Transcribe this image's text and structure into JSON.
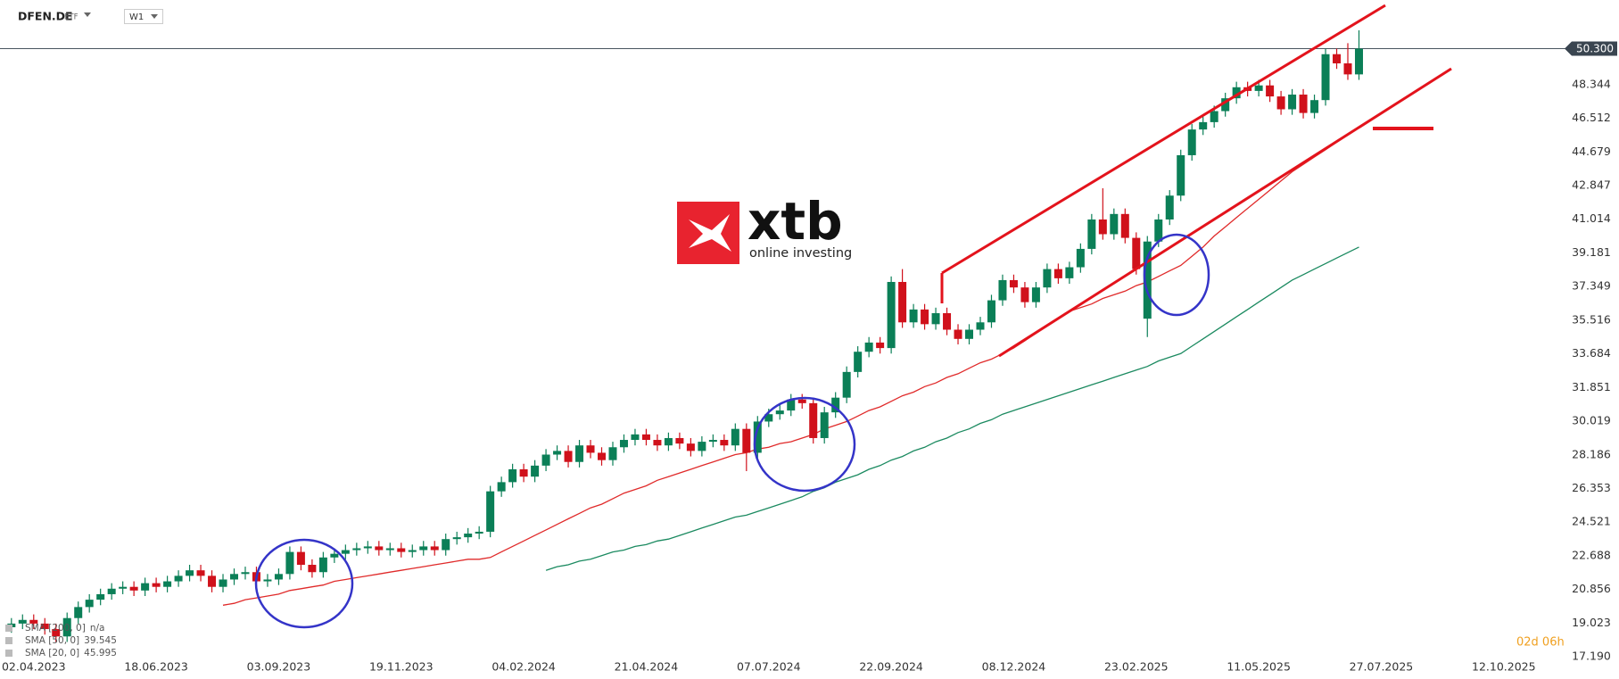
{
  "chart_data": {
    "type": "candlestick",
    "symbol": "DFEN.DE",
    "asset_class": "ETF",
    "interval": "W1",
    "countdown": "02d 06h",
    "watermark": {
      "brand": "xtb",
      "tagline": "online investing"
    },
    "up_color": "#0b7f57",
    "down_color": "#d0111b",
    "price_line": {
      "value": 50.3,
      "label": "50.300"
    },
    "ylim": [
      17.1,
      52.95
    ],
    "yticks": [
      {
        "value": 17.19,
        "label": "17.190"
      },
      {
        "value": 19.023,
        "label": "19.023"
      },
      {
        "value": 20.856,
        "label": "20.856"
      },
      {
        "value": 22.688,
        "label": "22.688"
      },
      {
        "value": 24.521,
        "label": "24.521"
      },
      {
        "value": 26.353,
        "label": "26.353"
      },
      {
        "value": 28.186,
        "label": "28.186"
      },
      {
        "value": 30.019,
        "label": "30.019"
      },
      {
        "value": 31.851,
        "label": "31.851"
      },
      {
        "value": 33.684,
        "label": "33.684"
      },
      {
        "value": 35.516,
        "label": "35.516"
      },
      {
        "value": 37.349,
        "label": "37.349"
      },
      {
        "value": 39.181,
        "label": "39.181"
      },
      {
        "value": 41.014,
        "label": "41.014"
      },
      {
        "value": 42.847,
        "label": "42.847"
      },
      {
        "value": 44.679,
        "label": "44.679"
      },
      {
        "value": 46.512,
        "label": "46.512"
      },
      {
        "value": 48.344,
        "label": "48.344"
      }
    ],
    "xticks": [
      "02.04.2023",
      "18.06.2023",
      "03.09.2023",
      "19.11.2023",
      "04.02.2024",
      "21.04.2024",
      "07.07.2024",
      "22.09.2024",
      "08.12.2024",
      "23.02.2025",
      "11.05.2025",
      "27.07.2025",
      "12.10.2025"
    ],
    "open": [
      18.8,
      19.0,
      19.2,
      19.0,
      18.7,
      18.3,
      19.3,
      19.9,
      20.3,
      20.6,
      20.9,
      21.0,
      20.8,
      21.2,
      21.0,
      21.3,
      21.6,
      21.9,
      21.6,
      21.0,
      21.4,
      21.7,
      21.8,
      21.3,
      21.4,
      21.7,
      22.9,
      22.2,
      21.8,
      22.6,
      22.8,
      23.0,
      23.1,
      23.2,
      23.0,
      23.1,
      22.9,
      23.0,
      23.2,
      23.0,
      23.6,
      23.7,
      23.9,
      24.0,
      26.2,
      26.7,
      27.4,
      27.0,
      27.6,
      28.2,
      28.4,
      27.8,
      28.7,
      28.3,
      27.9,
      28.6,
      29.0,
      29.3,
      29.0,
      28.7,
      29.1,
      28.8,
      28.4,
      28.9,
      29.0,
      28.7,
      29.6,
      28.3,
      30.0,
      30.4,
      30.6,
      31.2,
      31.0,
      29.1,
      30.5,
      31.3,
      32.7,
      33.8,
      34.3,
      34.0,
      37.6,
      35.4,
      36.1,
      35.3,
      35.9,
      35.0,
      34.5,
      35.0,
      35.4,
      36.6,
      37.7,
      37.3,
      36.5,
      37.3,
      38.3,
      37.8,
      38.4,
      39.4,
      41.0,
      40.2,
      41.3,
      40.0,
      35.6,
      39.8,
      41.0,
      42.3,
      44.5,
      45.9,
      46.3,
      46.9,
      47.6,
      48.2,
      48.0,
      48.3,
      47.7,
      47.0,
      47.8,
      46.8,
      47.5,
      50.0,
      49.5,
      48.9
    ],
    "high": [
      19.3,
      19.5,
      19.5,
      19.3,
      19.0,
      19.6,
      20.2,
      20.6,
      20.9,
      21.2,
      21.3,
      21.3,
      21.5,
      21.5,
      21.6,
      21.9,
      22.2,
      22.2,
      21.9,
      21.7,
      22.0,
      22.1,
      22.1,
      21.7,
      22.0,
      23.2,
      23.2,
      22.5,
      22.9,
      23.1,
      23.3,
      23.4,
      23.5,
      23.5,
      23.4,
      23.4,
      23.3,
      23.5,
      23.5,
      23.9,
      24.0,
      24.2,
      24.3,
      26.5,
      27.0,
      27.7,
      27.7,
      27.9,
      28.5,
      28.7,
      28.7,
      29.0,
      29.0,
      28.6,
      28.9,
      29.3,
      29.6,
      29.6,
      29.3,
      29.4,
      29.4,
      29.1,
      29.2,
      29.3,
      29.3,
      29.9,
      29.9,
      30.3,
      30.7,
      30.9,
      31.5,
      31.5,
      31.3,
      30.8,
      31.6,
      33.0,
      34.1,
      34.6,
      34.6,
      37.9,
      38.3,
      36.4,
      36.4,
      36.2,
      36.2,
      35.3,
      35.3,
      35.7,
      36.9,
      38.0,
      38.0,
      37.6,
      37.6,
      38.6,
      38.6,
      38.7,
      39.7,
      41.3,
      42.7,
      41.6,
      41.6,
      40.3,
      40.1,
      41.3,
      42.6,
      44.8,
      46.2,
      46.6,
      47.2,
      47.9,
      48.5,
      48.5,
      48.6,
      48.6,
      48.0,
      48.1,
      48.1,
      47.8,
      50.3,
      50.3,
      50.6,
      51.3
    ],
    "low": [
      18.5,
      18.7,
      18.7,
      18.4,
      18.0,
      18.0,
      19.0,
      19.6,
      20.0,
      20.3,
      20.6,
      20.5,
      20.5,
      20.7,
      20.7,
      21.0,
      21.3,
      21.3,
      20.7,
      20.7,
      21.1,
      21.4,
      21.0,
      21.0,
      21.1,
      21.4,
      21.9,
      21.5,
      21.5,
      22.3,
      22.5,
      22.7,
      22.8,
      22.7,
      22.7,
      22.6,
      22.6,
      22.7,
      22.7,
      22.7,
      23.3,
      23.4,
      23.6,
      23.7,
      25.9,
      26.4,
      26.7,
      26.7,
      27.3,
      27.9,
      27.5,
      27.5,
      28.0,
      27.6,
      27.6,
      28.3,
      28.7,
      28.7,
      28.4,
      28.4,
      28.5,
      28.1,
      28.1,
      28.6,
      28.4,
      28.4,
      27.3,
      28.0,
      29.7,
      30.1,
      30.3,
      30.7,
      28.8,
      28.8,
      30.2,
      31.0,
      32.4,
      33.5,
      33.7,
      33.7,
      35.1,
      35.1,
      35.0,
      35.0,
      34.7,
      34.2,
      34.2,
      34.7,
      35.1,
      36.3,
      37.0,
      36.2,
      36.2,
      37.0,
      37.5,
      37.5,
      38.1,
      39.1,
      39.9,
      39.9,
      39.7,
      38.0,
      34.6,
      39.5,
      40.7,
      42.0,
      44.2,
      45.6,
      46.0,
      46.6,
      47.3,
      47.7,
      47.7,
      47.4,
      46.7,
      46.7,
      46.5,
      46.5,
      47.2,
      49.2,
      48.6,
      48.6
    ],
    "close": [
      19.0,
      19.2,
      19.0,
      18.7,
      18.3,
      19.3,
      19.9,
      20.3,
      20.6,
      20.9,
      21.0,
      20.8,
      21.2,
      21.0,
      21.3,
      21.6,
      21.9,
      21.6,
      21.0,
      21.4,
      21.7,
      21.8,
      21.3,
      21.4,
      21.7,
      22.9,
      22.2,
      21.8,
      22.6,
      22.8,
      23.0,
      23.1,
      23.2,
      23.0,
      23.1,
      22.9,
      23.0,
      23.2,
      23.0,
      23.6,
      23.7,
      23.9,
      24.0,
      26.2,
      26.7,
      27.4,
      27.0,
      27.6,
      28.2,
      28.4,
      27.8,
      28.7,
      28.3,
      27.9,
      28.6,
      29.0,
      29.3,
      29.0,
      28.7,
      29.1,
      28.8,
      28.4,
      28.9,
      29.0,
      28.7,
      29.6,
      28.3,
      30.0,
      30.4,
      30.6,
      31.2,
      31.0,
      29.1,
      30.5,
      31.3,
      32.7,
      33.8,
      34.3,
      34.0,
      37.6,
      35.4,
      36.1,
      35.3,
      35.9,
      35.0,
      34.5,
      35.0,
      35.4,
      36.6,
      37.7,
      37.3,
      36.5,
      37.3,
      38.3,
      37.8,
      38.4,
      39.4,
      41.0,
      40.2,
      41.3,
      40.0,
      38.3,
      39.8,
      41.0,
      42.3,
      44.5,
      45.9,
      46.3,
      46.9,
      47.6,
      48.2,
      48.0,
      48.3,
      47.7,
      47.0,
      47.8,
      46.8,
      47.5,
      50.0,
      49.5,
      48.9,
      50.3
    ],
    "series": [
      {
        "name": "SMA [200, 0]",
        "legend_value": "n/a",
        "color": "#888888"
      },
      {
        "name": "SMA [50, 0]",
        "legend_value": 39.545,
        "color": "#1b8a60",
        "values": [
          null,
          null,
          null,
          null,
          null,
          null,
          null,
          null,
          null,
          null,
          null,
          null,
          null,
          null,
          null,
          null,
          null,
          null,
          null,
          null,
          null,
          null,
          null,
          null,
          null,
          null,
          null,
          null,
          null,
          null,
          null,
          null,
          null,
          null,
          null,
          null,
          null,
          null,
          null,
          null,
          null,
          null,
          null,
          null,
          null,
          null,
          null,
          null,
          21.9,
          22.1,
          22.2,
          22.4,
          22.5,
          22.7,
          22.9,
          23.0,
          23.2,
          23.3,
          23.5,
          23.6,
          23.8,
          24.0,
          24.2,
          24.4,
          24.6,
          24.8,
          24.9,
          25.1,
          25.3,
          25.5,
          25.7,
          25.9,
          26.2,
          26.4,
          26.7,
          26.9,
          27.1,
          27.4,
          27.6,
          27.9,
          28.1,
          28.4,
          28.6,
          28.9,
          29.1,
          29.4,
          29.6,
          29.9,
          30.1,
          30.4,
          30.6,
          30.8,
          31.0,
          31.2,
          31.4,
          31.6,
          31.8,
          32.0,
          32.2,
          32.4,
          32.6,
          32.8,
          33.0,
          33.3,
          33.5,
          33.7,
          34.1,
          34.5,
          34.9,
          35.3,
          35.7,
          36.1,
          36.5,
          36.9,
          37.3,
          37.7,
          38.0,
          38.3,
          38.6,
          38.9,
          39.2,
          39.5
        ]
      },
      {
        "name": "SMA [20, 0]",
        "legend_value": 45.995,
        "color": "#e02a2a",
        "values": [
          null,
          null,
          null,
          null,
          null,
          null,
          null,
          null,
          null,
          null,
          null,
          null,
          null,
          null,
          null,
          null,
          null,
          null,
          null,
          20.0,
          20.1,
          20.3,
          20.4,
          20.5,
          20.6,
          20.8,
          20.9,
          21.0,
          21.1,
          21.3,
          21.4,
          21.5,
          21.6,
          21.7,
          21.8,
          21.9,
          22.0,
          22.1,
          22.2,
          22.3,
          22.4,
          22.5,
          22.5,
          22.6,
          22.9,
          23.2,
          23.5,
          23.8,
          24.1,
          24.4,
          24.7,
          25.0,
          25.3,
          25.5,
          25.8,
          26.1,
          26.3,
          26.5,
          26.8,
          27.0,
          27.2,
          27.4,
          27.6,
          27.8,
          28.0,
          28.2,
          28.3,
          28.5,
          28.6,
          28.8,
          28.9,
          29.1,
          29.3,
          29.6,
          29.8,
          30.0,
          30.3,
          30.6,
          30.8,
          31.1,
          31.4,
          31.6,
          31.9,
          32.1,
          32.4,
          32.6,
          32.9,
          33.2,
          33.4,
          33.7,
          34.0,
          34.4,
          34.8,
          35.2,
          35.6,
          36.0,
          36.2,
          36.4,
          36.7,
          36.9,
          37.1,
          37.4,
          37.6,
          37.9,
          38.2,
          38.5,
          39.0,
          39.5,
          40.1,
          40.6,
          41.1,
          41.6,
          42.1,
          42.6,
          43.1,
          43.6,
          44.0,
          44.4,
          44.8,
          45.2,
          45.6,
          46.0
        ]
      }
    ]
  }
}
